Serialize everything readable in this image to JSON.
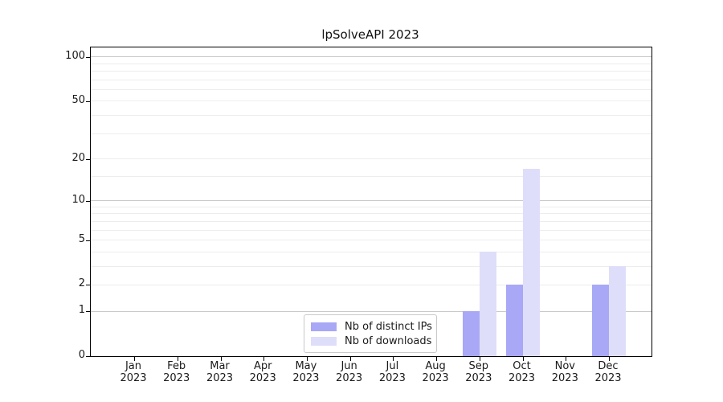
{
  "title": "lpSolveAPI 2023",
  "chart_data": {
    "type": "bar",
    "title": "lpSolveAPI 2023",
    "categories": [
      "Jan",
      "Feb",
      "Mar",
      "Apr",
      "May",
      "Jun",
      "Jul",
      "Aug",
      "Sep",
      "Oct",
      "Nov",
      "Dec"
    ],
    "year_label": "2023",
    "series": [
      {
        "name": "Nb of distinct IPs",
        "color": "#a8a8f6",
        "values": [
          0,
          0,
          0,
          0,
          0,
          0,
          0,
          0,
          1,
          2,
          0,
          2
        ]
      },
      {
        "name": "Nb of downloads",
        "color": "#dedefa",
        "values": [
          0,
          0,
          0,
          0,
          0,
          0,
          0,
          0,
          4,
          17,
          0,
          3
        ]
      }
    ],
    "y_axis": {
      "scale": "log1p",
      "range": [
        0,
        116
      ],
      "tick_labels": [
        0,
        1,
        2,
        5,
        10,
        20,
        50,
        100
      ],
      "major_gridlines": [
        1,
        10,
        100
      ],
      "minor_gridlines": [
        2,
        3,
        4,
        5,
        6,
        7,
        8,
        9,
        15,
        20,
        30,
        40,
        50,
        60,
        70,
        80,
        90
      ]
    },
    "legend": {
      "position": "bottom-center"
    },
    "grid": true,
    "colors": {
      "background": "#ffffff",
      "axis": "#000000",
      "text": "#1a1a1a",
      "grid_major": "#c9c9c9",
      "grid_minor": "#ededed"
    }
  }
}
